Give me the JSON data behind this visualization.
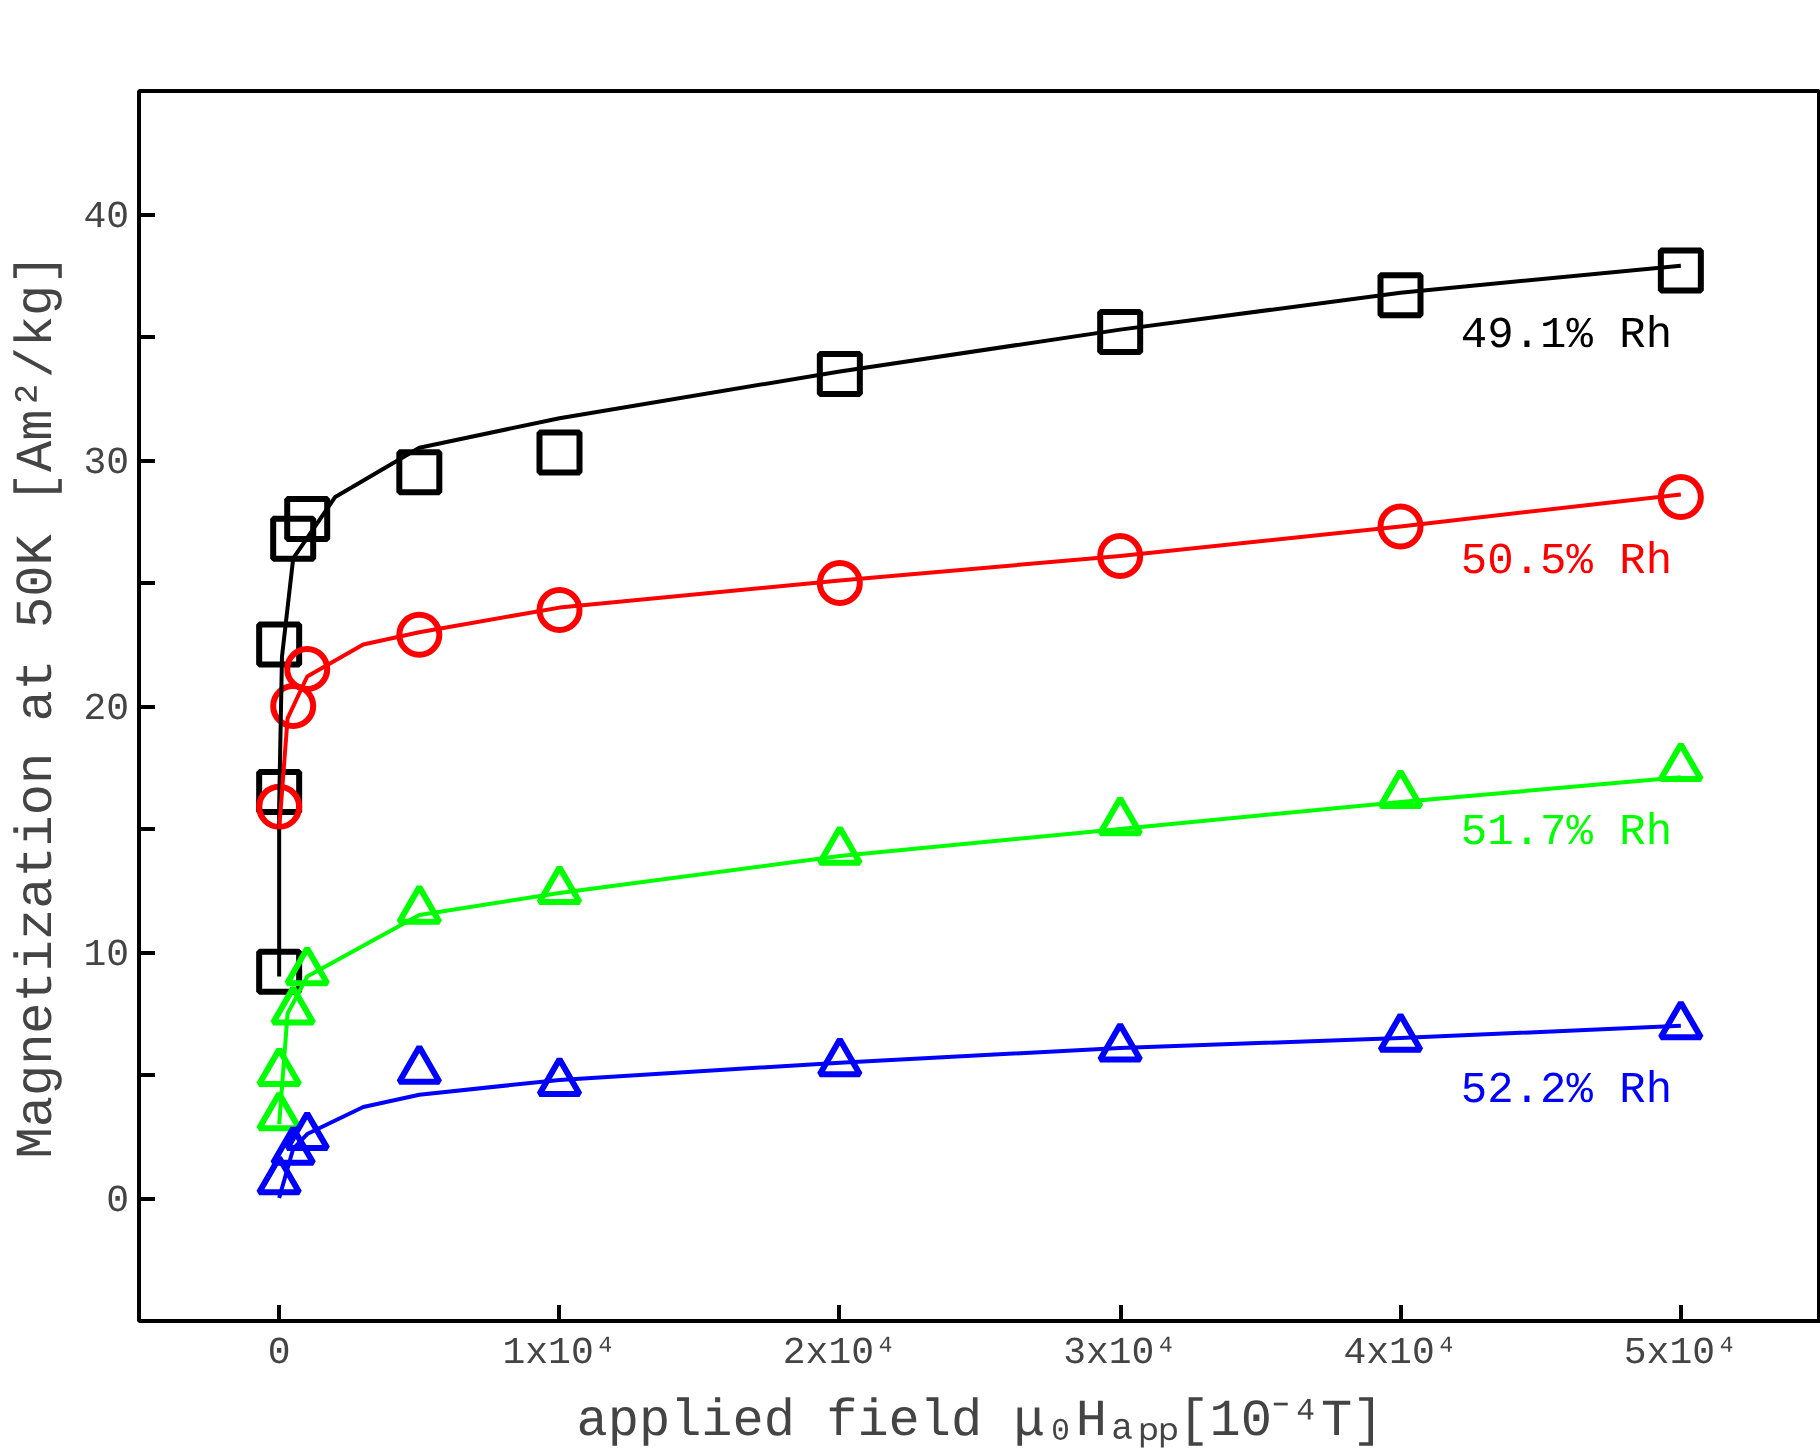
{
  "chart_data": {
    "type": "scatter",
    "xlabel": "applied field μ₀Hₐₚₚ[10⁻⁴T]",
    "ylabel": "Magnetization at 50K [Am²/kg]",
    "xlim": [
      -5000,
      55000
    ],
    "ylim": [
      -5,
      45
    ],
    "xticks": [
      0,
      {
        "value": 10000,
        "label": "1x10⁴"
      },
      {
        "value": 20000,
        "label": "2x10⁴"
      },
      {
        "value": 30000,
        "label": "3x10⁴"
      },
      {
        "value": 40000,
        "label": "4x10⁴"
      },
      {
        "value": 50000,
        "label": "5x10⁴"
      }
    ],
    "yticks": [
      0,
      {
        "value": 5,
        "label": null
      },
      10,
      {
        "value": 15,
        "label": null
      },
      20,
      {
        "value": 25,
        "label": null
      },
      30,
      {
        "value": 35,
        "label": null
      },
      40
    ],
    "grid": false,
    "series": [
      {
        "name": "49.1% Rh",
        "color": "#000000",
        "marker": "square",
        "x": [
          0,
          0,
          0,
          500,
          1000,
          5000,
          10000,
          20000,
          30000,
          40000,
          50000
        ],
        "values": [
          9.2,
          16.5,
          22.5,
          26.8,
          27.6,
          29.5,
          30.3,
          33.5,
          35.2,
          36.7,
          37.7
        ]
      },
      {
        "name": "50.5% Rh",
        "color": "#ff0000",
        "marker": "circle",
        "x": [
          0,
          500,
          1000,
          5000,
          10000,
          20000,
          30000,
          40000,
          50000
        ],
        "values": [
          15.9,
          20.0,
          21.5,
          22.9,
          23.9,
          25.0,
          26.1,
          27.3,
          28.5
        ]
      },
      {
        "name": "51.7% Rh",
        "color": "#00ff00",
        "marker": "triangle",
        "x": [
          0,
          0,
          500,
          1000,
          5000,
          10000,
          20000,
          30000,
          40000,
          50000
        ],
        "values": [
          3.3,
          5.1,
          7.6,
          9.2,
          11.7,
          12.5,
          14.1,
          15.3,
          16.4,
          17.5
        ]
      },
      {
        "name": "52.2% Rh",
        "color": "#0000ff",
        "marker": "triangle",
        "x": [
          0,
          500,
          1000,
          5000,
          10000,
          20000,
          30000,
          40000,
          50000
        ],
        "values": [
          0.7,
          1.9,
          2.5,
          5.2,
          4.7,
          5.5,
          6.1,
          6.5,
          7.0
        ]
      },
      {
        "type": "line",
        "color": "#000000",
        "x": [
          0,
          0,
          100,
          500,
          2000,
          5000,
          10000,
          20000,
          30000,
          40000,
          50000
        ],
        "values": [
          9,
          16,
          22,
          26,
          28.5,
          30.5,
          31.7,
          33.6,
          35.3,
          36.8,
          37.9
        ]
      },
      {
        "type": "line",
        "color": "#ff0000",
        "x": [
          0,
          300,
          1000,
          3000,
          5000,
          10000,
          20000,
          30000,
          40000,
          50000
        ],
        "values": [
          15,
          19.5,
          21.2,
          22.5,
          23,
          24,
          25.1,
          26.1,
          27.3,
          28.6
        ]
      },
      {
        "type": "line",
        "color": "#00ff00",
        "x": [
          0,
          300,
          1000,
          5000,
          10000,
          20000,
          30000,
          40000,
          50000
        ],
        "values": [
          3,
          7.5,
          9,
          11.5,
          12.4,
          13.9,
          15,
          16.1,
          17.1
        ]
      },
      {
        "type": "line",
        "color": "#0000ff",
        "x": [
          0,
          500,
          1000,
          3000,
          5000,
          10000,
          20000,
          30000,
          40000,
          50000
        ],
        "values": [
          0,
          2,
          2.6,
          3.7,
          4.2,
          4.8,
          5.5,
          6.1,
          6.5,
          7
        ]
      }
    ]
  }
}
